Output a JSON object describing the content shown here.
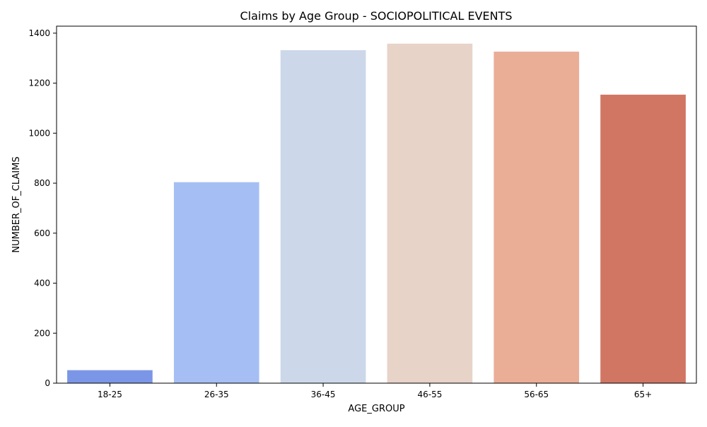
{
  "chart_data": {
    "type": "bar",
    "title": "Claims by Age Group - SOCIOPOLITICAL EVENTS",
    "xlabel": "AGE_GROUP",
    "ylabel": "NUMBER_OF_CLAIMS",
    "categories": [
      "18-25",
      "26-35",
      "36-45",
      "46-55",
      "56-65",
      "65+"
    ],
    "values": [
      52,
      804,
      1332,
      1358,
      1326,
      1154
    ],
    "colors": [
      "#7b96e6",
      "#a5bff4",
      "#ccd8ea",
      "#e8d3c9",
      "#eaad96",
      "#d17663"
    ],
    "ylim": [
      0,
      1428
    ],
    "yticks": [
      0,
      200,
      400,
      600,
      800,
      1000,
      1200,
      1400
    ],
    "grid": false,
    "legend": "none"
  }
}
